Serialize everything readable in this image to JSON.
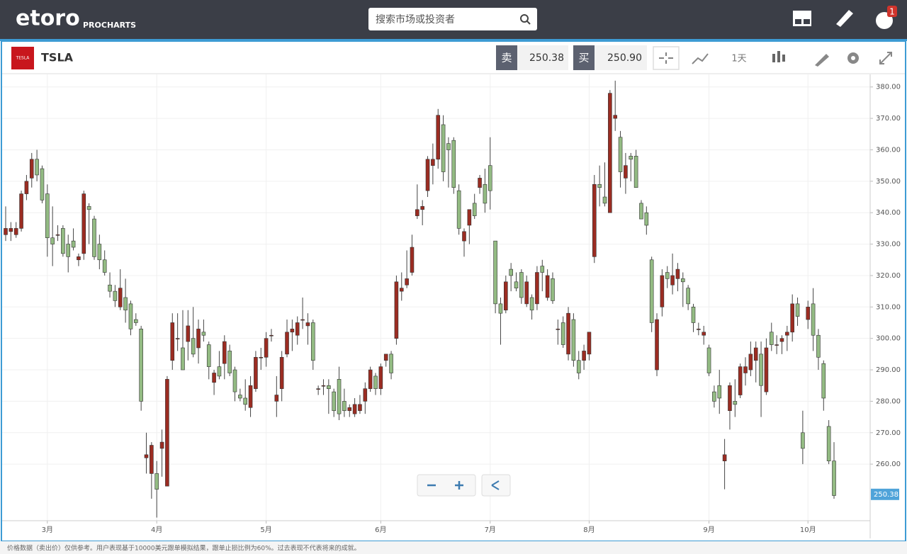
{
  "header": {
    "logo": "etoro",
    "product": "PROCHARTS",
    "search_placeholder": "搜索市场或投资者",
    "notification_count": "1"
  },
  "toolbar": {
    "icon_text": "TESLA",
    "symbol": "TSLA",
    "sell_label": "卖",
    "sell_price": "250.38",
    "buy_label": "买",
    "buy_price": "250.90",
    "timeframe": "1天"
  },
  "chart_data": {
    "type": "candlestick",
    "categories": [
      null,
      null,
      null,
      null,
      null,
      null,
      null,
      null,
      "3月",
      null,
      null,
      null,
      null,
      null,
      null,
      null,
      null,
      null,
      null,
      null,
      null,
      null,
      null,
      null,
      null,
      null,
      null,
      null,
      null,
      "4月",
      null,
      null,
      null,
      null,
      null,
      null,
      null,
      null,
      null,
      null,
      null,
      null,
      null,
      null,
      null,
      null,
      null,
      null,
      null,
      null,
      "5月",
      null,
      null,
      null,
      null,
      null,
      null,
      null,
      null,
      null,
      null,
      null,
      null,
      null,
      null,
      null,
      null,
      null,
      null,
      null,
      null,
      null,
      "6月",
      null,
      null,
      null,
      null,
      null,
      null,
      null,
      null,
      null,
      null,
      null,
      null,
      null,
      null,
      null,
      null,
      null,
      null,
      null,
      null,
      "7月",
      null,
      null,
      null,
      null,
      null,
      null,
      null,
      null,
      null,
      null,
      null,
      null,
      null,
      null,
      null,
      null,
      null,
      null,
      "8月",
      null,
      null,
      null,
      null,
      null,
      null,
      null,
      null,
      null,
      null,
      null,
      null,
      null,
      null,
      null,
      null,
      null,
      null,
      null,
      null,
      null,
      null,
      "9月",
      null,
      null,
      null,
      null,
      null,
      null,
      null,
      null,
      null,
      null,
      null,
      null,
      null,
      null,
      null,
      null,
      null,
      null,
      "10月",
      null,
      null,
      null,
      null,
      null
    ],
    "open": [
      333,
      334,
      333,
      335,
      346,
      351,
      357,
      354,
      346,
      332,
      333,
      335,
      330,
      331,
      325,
      327,
      342,
      338,
      330,
      325,
      317,
      315,
      310,
      313,
      311,
      306,
      303,
      262,
      257,
      257,
      265,
      253,
      293,
      300,
      297,
      299,
      300,
      297,
      302,
      298,
      286,
      291,
      292,
      296,
      290,
      282,
      281,
      278,
      284,
      294,
      294,
      301,
      280,
      284,
      295,
      302,
      301,
      306,
      304,
      305,
      284,
      285,
      285,
      283,
      287,
      280,
      277,
      276,
      277,
      280,
      284,
      288,
      284,
      293,
      295,
      300,
      315,
      317,
      321,
      339,
      341,
      347,
      355,
      357,
      368,
      362,
      363,
      347,
      331,
      336,
      343,
      348,
      349,
      355,
      331,
      311,
      309,
      322,
      318,
      321,
      311,
      313,
      311,
      323,
      313,
      319,
      303,
      305,
      295,
      306,
      293,
      293,
      295,
      326,
      349,
      345,
      340,
      370,
      364,
      351,
      358,
      358,
      343,
      340,
      325,
      290,
      310,
      321,
      317,
      319,
      319,
      316,
      310,
      303,
      301,
      297,
      283,
      285,
      261,
      277,
      280,
      282,
      289,
      290,
      293,
      295,
      283,
      302,
      298,
      299,
      301,
      302,
      311,
      270,
      306,
      311,
      301,
      292,
      272,
      261
    ],
    "high": [
      342,
      337,
      337,
      347,
      352,
      359,
      360,
      355,
      349,
      342,
      336,
      336,
      333,
      335,
      327,
      347,
      343,
      339,
      333,
      328,
      321,
      317,
      322,
      319,
      312,
      308,
      304,
      270,
      267,
      261,
      271,
      288,
      308,
      308,
      309,
      309,
      310,
      306,
      306,
      299,
      290,
      296,
      301,
      298,
      291,
      284,
      287,
      288,
      296,
      297,
      302,
      303,
      288,
      296,
      306,
      306,
      307,
      313,
      308,
      306,
      285,
      287,
      287,
      284,
      291,
      284,
      279,
      281,
      282,
      286,
      291,
      289,
      292,
      295,
      296,
      320,
      321,
      328,
      333,
      349,
      344,
      358,
      362,
      373,
      371,
      364,
      364,
      349,
      335,
      341,
      346,
      352,
      354,
      364,
      331,
      313,
      320,
      324,
      321,
      322,
      320,
      314,
      323,
      325,
      322,
      321,
      306,
      307,
      310,
      308,
      296,
      298,
      302,
      352,
      355,
      356,
      379,
      382,
      366,
      359,
      359,
      360,
      344,
      342,
      326,
      308,
      322,
      323,
      327,
      324,
      321,
      317,
      311,
      305,
      304,
      298,
      285,
      290,
      268,
      286,
      287,
      292,
      294,
      299,
      299,
      299,
      300,
      305,
      301,
      301,
      304,
      314,
      313,
      277,
      312,
      316,
      303,
      293,
      274,
      267
    ],
    "low": [
      331,
      331,
      332,
      334,
      344,
      348,
      350,
      343,
      326,
      323,
      331,
      326,
      321,
      328,
      323,
      325,
      330,
      325,
      322,
      320,
      313,
      310,
      309,
      305,
      301,
      304,
      277,
      257,
      249,
      243,
      256,
      253,
      290,
      296,
      290,
      293,
      294,
      292,
      299,
      287,
      282,
      287,
      287,
      288,
      280,
      280,
      277,
      275,
      283,
      290,
      291,
      299,
      275,
      280,
      294,
      296,
      298,
      303,
      298,
      290,
      282,
      282,
      276,
      275,
      274,
      275,
      275,
      275,
      276,
      276,
      283,
      282,
      282,
      291,
      287,
      298,
      312,
      316,
      320,
      338,
      336,
      345,
      349,
      354,
      350,
      348,
      346,
      333,
      326,
      330,
      338,
      346,
      340,
      341,
      308,
      298,
      308,
      315,
      315,
      311,
      310,
      306,
      309,
      315,
      312,
      311,
      298,
      297,
      293,
      291,
      287,
      290,
      293,
      324,
      342,
      342,
      340,
      366,
      348,
      346,
      350,
      348,
      338,
      333,
      302,
      288,
      307,
      316,
      314,
      315,
      310,
      309,
      302,
      301,
      298,
      288,
      278,
      276,
      252,
      271,
      275,
      281,
      285,
      288,
      286,
      275,
      282,
      296,
      295,
      295,
      296,
      299,
      304,
      260,
      303,
      296,
      290,
      277,
      260,
      249
    ],
    "close": [
      335,
      335,
      335,
      346,
      350,
      357,
      352,
      344,
      332,
      330,
      333,
      327,
      326,
      329,
      326,
      346,
      341,
      326,
      325,
      321,
      315,
      312,
      316,
      309,
      303,
      305,
      280,
      263,
      266,
      252,
      267,
      287,
      305,
      300,
      290,
      304,
      295,
      303,
      301,
      291,
      289,
      288,
      299,
      289,
      283,
      281,
      279,
      285,
      294,
      294,
      300,
      301,
      282,
      294,
      302,
      303,
      305,
      306,
      305,
      293,
      284,
      285,
      284,
      277,
      276,
      277,
      278,
      279,
      279,
      284,
      290,
      284,
      291,
      295,
      289,
      318,
      316,
      319,
      329,
      341,
      342,
      357,
      357,
      371,
      353,
      360,
      348,
      335,
      334,
      341,
      339,
      351,
      343,
      347,
      311,
      308,
      318,
      320,
      316,
      313,
      318,
      309,
      321,
      321,
      320,
      312,
      303,
      298,
      308,
      293,
      289,
      296,
      302,
      349,
      348,
      343,
      378,
      371,
      353,
      355,
      357,
      348,
      338,
      336,
      305,
      306,
      320,
      319,
      320,
      322,
      318,
      311,
      305,
      303,
      302,
      289,
      280,
      281,
      263,
      285,
      279,
      291,
      291,
      295,
      297,
      285,
      297,
      298,
      298,
      300,
      302,
      311,
      307,
      265,
      310,
      301,
      294,
      281,
      261,
      250
    ],
    "up_color": "#9b2c22",
    "down_color": "#93bb83",
    "ylim": [
      242,
      384
    ],
    "yticks": [
      {
        "value": 260,
        "label": "260.00"
      },
      {
        "value": 270,
        "label": "270.00"
      },
      {
        "value": 280,
        "label": "280.00"
      },
      {
        "value": 290,
        "label": "290.00"
      },
      {
        "value": 300,
        "label": "300.00"
      },
      {
        "value": 310,
        "label": "310.00"
      },
      {
        "value": 320,
        "label": "320.00"
      },
      {
        "value": 330,
        "label": "330.00"
      },
      {
        "value": 340,
        "label": "340.00"
      },
      {
        "value": 350,
        "label": "350.00"
      },
      {
        "value": 360,
        "label": "360.00"
      },
      {
        "value": 370,
        "label": "370.00"
      },
      {
        "value": 380,
        "label": "380.00"
      }
    ],
    "grid": true,
    "last_price": 250.38
  },
  "footer": {
    "disclaimer": "价格数据（卖出价）仅供参考。用户表现基于10000美元跟单模拟结果，跟单止损比例为60%。过去表现不代表将来的成就。"
  }
}
